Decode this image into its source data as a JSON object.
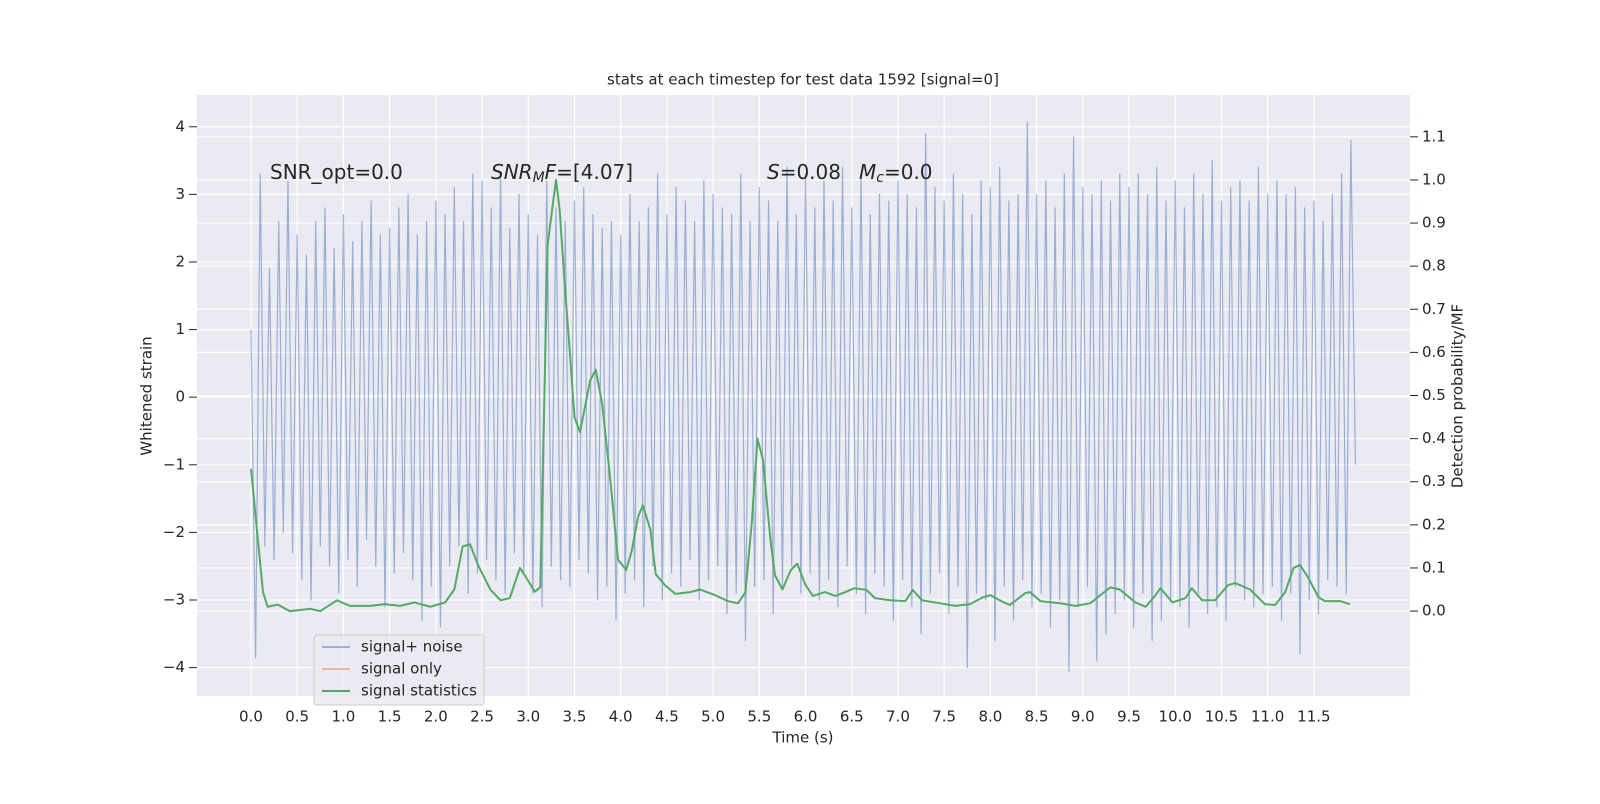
{
  "chart_data": {
    "type": "line",
    "title": "stats at each timestep for test data 1592 [signal=0]",
    "xlabel": "Time (s)",
    "ylabel": "Whitened strain",
    "y2label": "Detection probability/MF",
    "annotations": [
      [
        "SNR_opt=0.0"
      ],
      [
        "SNR",
        "M",
        "F",
        "=[4.07]"
      ],
      [
        "S",
        "=0.08"
      ],
      [
        "M",
        "c",
        "=0.0"
      ]
    ],
    "xlim": [
      -0.584,
      12.54
    ],
    "ylim": [
      -4.42,
      4.47
    ],
    "y2lim": [
      -0.197,
      1.197
    ],
    "xticks": [
      {
        "value": 0,
        "label": "0.0"
      },
      0.5,
      {
        "value": 1,
        "label": "1.0"
      },
      1.5,
      {
        "value": 2,
        "label": "2.0"
      },
      2.5,
      {
        "value": 3,
        "label": "3.0"
      },
      3.5,
      {
        "value": 4,
        "label": "4.0"
      },
      4.5,
      {
        "value": 5,
        "label": "5.0"
      },
      5.5,
      {
        "value": 6,
        "label": "6.0"
      },
      6.5,
      {
        "value": 7,
        "label": "7.0"
      },
      7.5,
      {
        "value": 8,
        "label": "8.0"
      },
      8.5,
      {
        "value": 9,
        "label": "9.0"
      },
      9.5,
      {
        "value": 10,
        "label": "10.0"
      },
      10.5,
      {
        "value": 11,
        "label": "11.0"
      },
      11.5
    ],
    "yticks": [
      {
        "value": -4,
        "label": "−4"
      },
      {
        "value": -3,
        "label": "−3"
      },
      {
        "value": -2,
        "label": "−2"
      },
      {
        "value": -1,
        "label": "−1"
      },
      0,
      1,
      2,
      3,
      4
    ],
    "y2ticks": [
      {
        "value": 0,
        "label": "0.0"
      },
      0.1,
      0.2,
      0.3,
      0.4,
      0.5,
      0.6,
      0.7,
      0.8,
      0.9,
      {
        "value": 1,
        "label": "1.0"
      },
      1.1
    ],
    "grid": true,
    "legend": "lower left",
    "series": [
      {
        "name": "signal+ noise",
        "color": "#4c72b0",
        "opacity": 0.5,
        "x": [
          0,
          0.05,
          0.1,
          0.15,
          0.2,
          0.25,
          0.3,
          0.35,
          0.4,
          0.45,
          0.5,
          0.55,
          0.6,
          0.65,
          0.7,
          0.75,
          0.8,
          0.85,
          0.9,
          0.95,
          1,
          1.05,
          1.1,
          1.15,
          1.2,
          1.25,
          1.3,
          1.35,
          1.4,
          1.45,
          1.5,
          1.55,
          1.6,
          1.65,
          1.7,
          1.75,
          1.8,
          1.85,
          1.9,
          1.95,
          2,
          2.05,
          2.1,
          2.15,
          2.2,
          2.25,
          2.3,
          2.35,
          2.4,
          2.45,
          2.5,
          2.55,
          2.6,
          2.65,
          2.7,
          2.75,
          2.8,
          2.85,
          2.9,
          2.95,
          3,
          3.05,
          3.1,
          3.15,
          3.2,
          3.25,
          3.3,
          3.35,
          3.4,
          3.45,
          3.5,
          3.55,
          3.6,
          3.65,
          3.7,
          3.75,
          3.8,
          3.85,
          3.9,
          3.95,
          4,
          4.05,
          4.1,
          4.15,
          4.2,
          4.25,
          4.3,
          4.35,
          4.4,
          4.45,
          4.5,
          4.55,
          4.6,
          4.65,
          4.7,
          4.75,
          4.8,
          4.85,
          4.9,
          4.95,
          5,
          5.05,
          5.1,
          5.15,
          5.2,
          5.25,
          5.3,
          5.35,
          5.4,
          5.45,
          5.5,
          5.55,
          5.6,
          5.65,
          5.7,
          5.75,
          5.8,
          5.85,
          5.9,
          5.95,
          6,
          6.05,
          6.1,
          6.15,
          6.2,
          6.25,
          6.3,
          6.35,
          6.4,
          6.45,
          6.5,
          6.55,
          6.6,
          6.65,
          6.7,
          6.75,
          6.8,
          6.85,
          6.9,
          6.95,
          7,
          7.05,
          7.1,
          7.15,
          7.2,
          7.25,
          7.3,
          7.35,
          7.4,
          7.45,
          7.5,
          7.55,
          7.6,
          7.65,
          7.7,
          7.75,
          7.8,
          7.85,
          7.9,
          7.95,
          8,
          8.05,
          8.1,
          8.15,
          8.2,
          8.25,
          8.3,
          8.35,
          8.4,
          8.45,
          8.5,
          8.55,
          8.6,
          8.65,
          8.7,
          8.75,
          8.8,
          8.85,
          8.9,
          8.95,
          9,
          9.05,
          9.1,
          9.15,
          9.2,
          9.25,
          9.3,
          9.35,
          9.4,
          9.45,
          9.5,
          9.55,
          9.6,
          9.65,
          9.7,
          9.75,
          9.8,
          9.85,
          9.9,
          9.95,
          10,
          10.05,
          10.1,
          10.15,
          10.2,
          10.25,
          10.3,
          10.35,
          10.4,
          10.45,
          10.5,
          10.55,
          10.6,
          10.65,
          10.7,
          10.75,
          10.8,
          10.85,
          10.9,
          10.95,
          11,
          11.05,
          11.1,
          11.15,
          11.2,
          11.25,
          11.3,
          11.35,
          11.4,
          11.45,
          11.5,
          11.55,
          11.6,
          11.65,
          11.7,
          11.75,
          11.8,
          11.85,
          11.9,
          11.95
        ],
        "values": [
          1.0,
          -3.85,
          3.3,
          -2.2,
          1.9,
          -2.4,
          2.6,
          -2.0,
          3.2,
          -2.3,
          2.4,
          -2.7,
          2.1,
          -3.0,
          2.6,
          -2.2,
          2.8,
          -2.5,
          2.2,
          -2.9,
          2.7,
          -2.4,
          2.3,
          -2.8,
          2.6,
          -2.1,
          2.9,
          -2.5,
          2.4,
          -3.1,
          2.5,
          -2.6,
          2.8,
          -2.3,
          3.0,
          -2.7,
          2.4,
          -3.3,
          2.6,
          -2.8,
          2.9,
          -3.4,
          2.7,
          -2.5,
          3.1,
          -2.2,
          2.6,
          -2.9,
          3.3,
          -2.6,
          3.2,
          -2.4,
          2.8,
          -2.7,
          3.3,
          -2.9,
          2.5,
          -2.3,
          3.0,
          -2.6,
          2.7,
          -2.9,
          2.4,
          -3.1,
          3.2,
          -2.5,
          2.8,
          -2.7,
          2.6,
          -2.8,
          2.9,
          -2.4,
          3.1,
          -2.6,
          2.7,
          -3.0,
          2.5,
          -2.8,
          2.6,
          -3.3,
          2.4,
          -2.9,
          3.0,
          -2.7,
          2.6,
          -3.1,
          2.8,
          -2.5,
          3.3,
          -3.0,
          2.7,
          -2.6,
          3.1,
          -2.8,
          2.9,
          -2.4,
          2.6,
          -3.0,
          3.2,
          -2.7,
          3.0,
          -2.5,
          2.8,
          -3.2,
          2.7,
          -2.9,
          3.3,
          -3.6,
          2.6,
          -2.8,
          3.1,
          -2.7,
          2.9,
          -3.2,
          2.6,
          -2.8,
          3.4,
          -2.5,
          2.7,
          -2.9,
          3.3,
          -2.6,
          2.8,
          -3.0,
          3.2,
          -2.7,
          2.9,
          -3.1,
          3.4,
          -2.5,
          2.8,
          -2.9,
          3.3,
          -3.2,
          2.7,
          -2.6,
          3.0,
          -2.8,
          2.9,
          -3.3,
          3.2,
          -2.7,
          3.0,
          -3.1,
          2.8,
          -3.5,
          3.9,
          -2.9,
          3.1,
          -2.6,
          2.9,
          -3.2,
          3.3,
          -2.8,
          3.0,
          -4.0,
          2.7,
          -2.9,
          3.2,
          -3.0,
          3.1,
          -3.6,
          3.4,
          -2.8,
          2.9,
          -3.3,
          3.0,
          -2.7,
          4.07,
          -3.1,
          3.0,
          -2.9,
          3.2,
          -3.4,
          2.8,
          -3.0,
          3.3,
          -4.05,
          3.85,
          -3.1,
          3.1,
          -2.8,
          3.0,
          -3.9,
          3.2,
          -3.5,
          2.9,
          -3.2,
          3.3,
          -3.0,
          3.1,
          -3.4,
          3.3,
          -2.9,
          3.0,
          -3.6,
          3.4,
          -3.3,
          2.9,
          -3.0,
          3.2,
          -3.1,
          2.8,
          -3.4,
          3.3,
          -2.9,
          3.0,
          -3.2,
          3.5,
          -3.1,
          2.9,
          -3.3,
          3.1,
          -2.8,
          3.2,
          -3.0,
          2.9,
          -3.1,
          3.4,
          -2.9,
          3.0,
          -2.8,
          3.2,
          -3.3,
          3.0,
          -2.9,
          3.1,
          -3.8,
          2.8,
          -3.0,
          2.9,
          -3.2,
          2.6,
          -2.7,
          3.0,
          -2.8,
          3.3,
          -2.9,
          3.8,
          -1.0
        ]
      },
      {
        "name": "signal only",
        "color": "#dd8452",
        "opacity": 0.5,
        "x": [],
        "values": []
      },
      {
        "name": "signal statistics",
        "color": "#55a868",
        "opacity": 1,
        "axis": "y2",
        "x": [
          0,
          0.13,
          0.18,
          0.29,
          0.42,
          0.64,
          0.75,
          0.93,
          1.07,
          1.29,
          1.45,
          1.61,
          1.77,
          1.94,
          2.1,
          2.2,
          2.29,
          2.37,
          2.46,
          2.59,
          2.7,
          2.8,
          2.91,
          3.0,
          3.07,
          3.13,
          3.21,
          3.3,
          3.34,
          3.39,
          3.45,
          3.5,
          3.56,
          3.67,
          3.73,
          3.8,
          3.89,
          3.97,
          4.06,
          4.12,
          4.19,
          4.24,
          4.32,
          4.38,
          4.48,
          4.59,
          4.75,
          4.86,
          5.02,
          5.16,
          5.27,
          5.35,
          5.42,
          5.48,
          5.54,
          5.62,
          5.67,
          5.75,
          5.84,
          5.91,
          6.0,
          6.08,
          6.21,
          6.32,
          6.43,
          6.53,
          6.66,
          6.75,
          6.92,
          7.08,
          7.16,
          7.26,
          7.4,
          7.62,
          7.78,
          7.92,
          8.0,
          8.1,
          8.21,
          8.38,
          8.43,
          8.54,
          8.76,
          8.92,
          9.08,
          9.19,
          9.3,
          9.4,
          9.57,
          9.68,
          9.78,
          9.84,
          9.97,
          10.11,
          10.18,
          10.29,
          10.43,
          10.57,
          10.65,
          10.81,
          10.97,
          11.08,
          11.19,
          11.28,
          11.35,
          11.44,
          11.55,
          11.62,
          11.79,
          11.89
        ],
        "values": [
          0.33,
          0.044,
          0.01,
          0.015,
          0.0,
          0.005,
          0.0,
          0.025,
          0.012,
          0.012,
          0.016,
          0.012,
          0.02,
          0.01,
          0.02,
          0.05,
          0.15,
          0.155,
          0.105,
          0.05,
          0.025,
          0.03,
          0.1,
          0.07,
          0.045,
          0.055,
          0.85,
          1.0,
          0.93,
          0.77,
          0.6,
          0.45,
          0.415,
          0.535,
          0.56,
          0.48,
          0.3,
          0.12,
          0.095,
          0.14,
          0.22,
          0.245,
          0.19,
          0.085,
          0.06,
          0.04,
          0.044,
          0.05,
          0.037,
          0.023,
          0.018,
          0.044,
          0.21,
          0.4,
          0.35,
          0.165,
          0.083,
          0.05,
          0.095,
          0.11,
          0.06,
          0.035,
          0.044,
          0.035,
          0.044,
          0.053,
          0.049,
          0.03,
          0.025,
          0.023,
          0.049,
          0.025,
          0.02,
          0.012,
          0.016,
          0.032,
          0.037,
          0.025,
          0.014,
          0.042,
          0.044,
          0.023,
          0.018,
          0.012,
          0.018,
          0.037,
          0.055,
          0.05,
          0.02,
          0.01,
          0.035,
          0.053,
          0.02,
          0.03,
          0.053,
          0.025,
          0.025,
          0.06,
          0.065,
          0.05,
          0.016,
          0.014,
          0.044,
          0.1,
          0.107,
          0.077,
          0.032,
          0.023,
          0.023,
          0.016
        ]
      }
    ]
  }
}
